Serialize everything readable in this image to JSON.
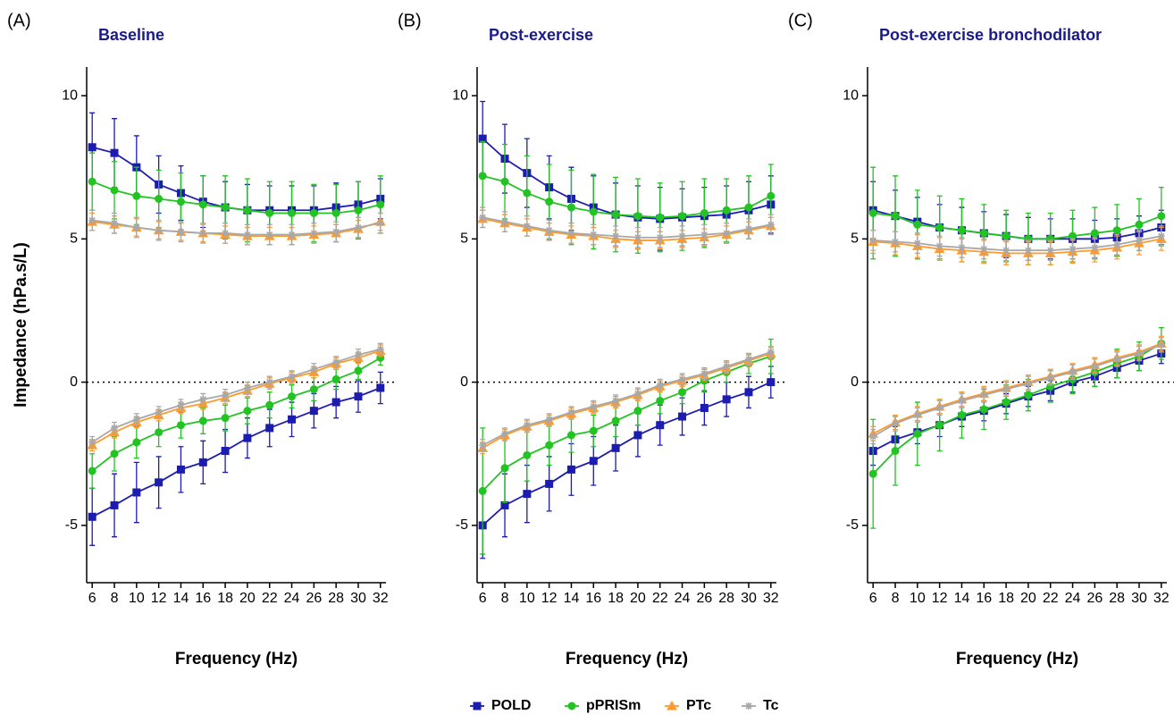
{
  "chart_data": [
    {
      "type": "line",
      "panel_label": "(A)",
      "title": "Baseline",
      "xlabel": "Frequency (Hz)",
      "ylabel": "Impedance (hPa.s/L)",
      "x": [
        6,
        8,
        10,
        12,
        14,
        16,
        18,
        20,
        22,
        24,
        26,
        28,
        30,
        32
      ],
      "xticks": [
        6,
        8,
        10,
        12,
        14,
        16,
        18,
        20,
        22,
        24,
        26,
        28,
        30,
        32
      ],
      "xlim": [
        5.5,
        32.5
      ],
      "ylim": [
        -7,
        11
      ],
      "yticks": [
        -5,
        0,
        5,
        10
      ],
      "zero_line": true,
      "series": [
        {
          "resistance": [
            8.2,
            8.0,
            7.5,
            6.9,
            6.6,
            6.3,
            6.1,
            6.0,
            6.0,
            6.0,
            6.0,
            6.1,
            6.2,
            6.4
          ],
          "resistance_sd": [
            1.2,
            1.2,
            1.1,
            1.0,
            0.95,
            0.9,
            0.9,
            0.9,
            0.85,
            0.85,
            0.85,
            0.85,
            0.8,
            0.7
          ],
          "reactance": [
            -4.7,
            -4.3,
            -3.85,
            -3.5,
            -3.05,
            -2.8,
            -2.4,
            -1.95,
            -1.6,
            -1.3,
            -1.0,
            -0.7,
            -0.5,
            -0.2
          ],
          "reactance_sd": [
            1.0,
            1.1,
            1.05,
            0.9,
            0.8,
            0.75,
            0.75,
            0.7,
            0.65,
            0.6,
            0.6,
            0.55,
            0.55,
            0.55
          ]
        },
        {
          "resistance": [
            7.0,
            6.7,
            6.5,
            6.4,
            6.3,
            6.2,
            6.1,
            6.0,
            5.9,
            5.9,
            5.9,
            5.9,
            6.0,
            6.2
          ],
          "resistance_sd": [
            1.0,
            1.0,
            1.0,
            1.0,
            1.0,
            1.0,
            1.1,
            1.1,
            1.1,
            1.1,
            1.0,
            1.0,
            1.0,
            1.0
          ],
          "reactance": [
            -3.1,
            -2.5,
            -2.1,
            -1.75,
            -1.5,
            -1.35,
            -1.25,
            -1.0,
            -0.8,
            -0.5,
            -0.25,
            0.1,
            0.4,
            0.85
          ],
          "reactance_sd": [
            0.6,
            0.6,
            0.55,
            0.5,
            0.45,
            0.45,
            0.45,
            0.45,
            0.45,
            0.4,
            0.4,
            0.35,
            0.3,
            0.25
          ]
        },
        {
          "resistance": [
            5.6,
            5.5,
            5.4,
            5.3,
            5.25,
            5.2,
            5.15,
            5.1,
            5.1,
            5.1,
            5.15,
            5.2,
            5.35,
            5.6
          ],
          "resistance_sd": [
            0.3,
            0.3,
            0.3,
            0.3,
            0.3,
            0.3,
            0.3,
            0.3,
            0.3,
            0.3,
            0.3,
            0.3,
            0.3,
            0.3
          ],
          "reactance": [
            -2.2,
            -1.75,
            -1.4,
            -1.15,
            -0.9,
            -0.75,
            -0.55,
            -0.3,
            -0.05,
            0.15,
            0.35,
            0.65,
            0.85,
            1.1
          ],
          "reactance_sd": [
            0.2,
            0.2,
            0.2,
            0.2,
            0.2,
            0.2,
            0.2,
            0.2,
            0.2,
            0.2,
            0.2,
            0.2,
            0.2,
            0.2
          ]
        },
        {
          "resistance": [
            5.65,
            5.55,
            5.4,
            5.3,
            5.25,
            5.2,
            5.2,
            5.15,
            5.15,
            5.15,
            5.2,
            5.25,
            5.4,
            5.55
          ],
          "resistance_sd": [
            0.35,
            0.35,
            0.35,
            0.35,
            0.35,
            0.35,
            0.35,
            0.35,
            0.35,
            0.35,
            0.35,
            0.35,
            0.35,
            0.35
          ],
          "reactance": [
            -2.1,
            -1.6,
            -1.3,
            -1.05,
            -0.8,
            -0.6,
            -0.45,
            -0.2,
            0.0,
            0.2,
            0.45,
            0.7,
            0.95,
            1.15
          ],
          "reactance_sd": [
            0.2,
            0.2,
            0.2,
            0.2,
            0.2,
            0.2,
            0.2,
            0.2,
            0.2,
            0.2,
            0.2,
            0.2,
            0.2,
            0.2
          ]
        }
      ]
    },
    {
      "type": "line",
      "panel_label": "(B)",
      "title": "Post-exercise",
      "xlabel": "Frequency (Hz)",
      "x": [
        6,
        8,
        10,
        12,
        14,
        16,
        18,
        20,
        22,
        24,
        26,
        28,
        30,
        32
      ],
      "xticks": [
        6,
        8,
        10,
        12,
        14,
        16,
        18,
        20,
        22,
        24,
        26,
        28,
        30,
        32
      ],
      "xlim": [
        5.5,
        32.5
      ],
      "ylim": [
        -7,
        11
      ],
      "yticks": [
        -5,
        0,
        5,
        10
      ],
      "zero_line": true,
      "series": [
        {
          "resistance": [
            8.5,
            7.8,
            7.3,
            6.8,
            6.4,
            6.1,
            5.85,
            5.75,
            5.7,
            5.75,
            5.8,
            5.85,
            6.0,
            6.2
          ],
          "resistance_sd": [
            1.3,
            1.2,
            1.2,
            1.1,
            1.1,
            1.1,
            1.1,
            1.1,
            1.1,
            1.0,
            1.0,
            1.0,
            1.0,
            1.0
          ],
          "reactance": [
            -5.0,
            -4.3,
            -3.9,
            -3.55,
            -3.05,
            -2.75,
            -2.3,
            -1.85,
            -1.5,
            -1.2,
            -0.9,
            -0.6,
            -0.35,
            0.0
          ],
          "reactance_sd": [
            1.15,
            1.1,
            1.0,
            0.95,
            0.9,
            0.85,
            0.8,
            0.75,
            0.7,
            0.65,
            0.6,
            0.6,
            0.55,
            0.55
          ]
        },
        {
          "resistance": [
            7.2,
            7.0,
            6.6,
            6.3,
            6.1,
            5.95,
            5.85,
            5.8,
            5.75,
            5.8,
            5.9,
            6.0,
            6.1,
            6.5
          ],
          "resistance_sd": [
            1.2,
            1.3,
            1.3,
            1.3,
            1.3,
            1.3,
            1.3,
            1.3,
            1.2,
            1.2,
            1.2,
            1.1,
            1.1,
            1.1
          ],
          "reactance": [
            -3.8,
            -3.0,
            -2.55,
            -2.2,
            -1.85,
            -1.7,
            -1.35,
            -1.0,
            -0.65,
            -0.35,
            0.05,
            0.35,
            0.65,
            0.9
          ],
          "reactance_sd": [
            2.2,
            1.2,
            0.9,
            0.7,
            0.6,
            0.55,
            0.55,
            0.5,
            0.45,
            0.4,
            0.4,
            0.35,
            0.35,
            0.6
          ]
        },
        {
          "resistance": [
            5.7,
            5.55,
            5.4,
            5.25,
            5.15,
            5.1,
            5.0,
            4.95,
            4.95,
            5.0,
            5.05,
            5.15,
            5.3,
            5.45
          ],
          "resistance_sd": [
            0.3,
            0.3,
            0.3,
            0.3,
            0.3,
            0.3,
            0.3,
            0.3,
            0.3,
            0.3,
            0.3,
            0.3,
            0.3,
            0.3
          ],
          "reactance": [
            -2.3,
            -1.85,
            -1.55,
            -1.35,
            -1.1,
            -0.9,
            -0.7,
            -0.45,
            -0.15,
            0.05,
            0.25,
            0.5,
            0.75,
            1.0
          ],
          "reactance_sd": [
            0.2,
            0.2,
            0.2,
            0.2,
            0.2,
            0.2,
            0.2,
            0.2,
            0.2,
            0.2,
            0.2,
            0.2,
            0.2,
            0.2
          ]
        },
        {
          "resistance": [
            5.75,
            5.6,
            5.45,
            5.3,
            5.2,
            5.15,
            5.1,
            5.05,
            5.05,
            5.1,
            5.15,
            5.2,
            5.35,
            5.5
          ],
          "resistance_sd": [
            0.35,
            0.35,
            0.35,
            0.35,
            0.35,
            0.35,
            0.35,
            0.35,
            0.35,
            0.35,
            0.35,
            0.35,
            0.35,
            0.35
          ],
          "reactance": [
            -2.2,
            -1.8,
            -1.5,
            -1.3,
            -1.05,
            -0.85,
            -0.65,
            -0.4,
            -0.1,
            0.1,
            0.3,
            0.55,
            0.8,
            1.05
          ],
          "reactance_sd": [
            0.2,
            0.2,
            0.2,
            0.2,
            0.2,
            0.2,
            0.2,
            0.2,
            0.2,
            0.2,
            0.2,
            0.2,
            0.2,
            0.2
          ]
        }
      ]
    },
    {
      "type": "line",
      "panel_label": "(C)",
      "title": "Post-exercise bronchodilator",
      "xlabel": "Frequency (Hz)",
      "x": [
        6,
        8,
        10,
        12,
        14,
        16,
        18,
        20,
        22,
        24,
        26,
        28,
        30,
        32
      ],
      "xticks": [
        6,
        8,
        10,
        12,
        14,
        16,
        18,
        20,
        22,
        24,
        26,
        28,
        30,
        32
      ],
      "xlim": [
        5.5,
        32.5
      ],
      "ylim": [
        -7,
        11
      ],
      "yticks": [
        -5,
        0,
        5,
        10
      ],
      "zero_line": true,
      "series": [
        {
          "resistance": [
            6.0,
            5.8,
            5.6,
            5.4,
            5.3,
            5.2,
            5.1,
            5.0,
            5.0,
            5.0,
            5.0,
            5.05,
            5.2,
            5.4
          ],
          "resistance_sd": [
            1.0,
            0.9,
            0.85,
            0.8,
            0.8,
            0.75,
            0.75,
            0.75,
            0.7,
            0.7,
            0.65,
            0.65,
            0.6,
            0.6
          ],
          "reactance": [
            -2.4,
            -2.0,
            -1.75,
            -1.5,
            -1.2,
            -1.0,
            -0.75,
            -0.5,
            -0.3,
            0.0,
            0.2,
            0.5,
            0.75,
            1.0
          ],
          "reactance_sd": [
            0.5,
            0.45,
            0.4,
            0.4,
            0.35,
            0.35,
            0.35,
            0.35,
            0.35,
            0.35,
            0.35,
            0.35,
            0.35,
            0.35
          ]
        },
        {
          "resistance": [
            5.9,
            5.8,
            5.5,
            5.4,
            5.3,
            5.2,
            5.1,
            5.0,
            5.0,
            5.1,
            5.2,
            5.3,
            5.5,
            5.8
          ],
          "resistance_sd": [
            1.6,
            1.4,
            1.2,
            1.1,
            1.1,
            1.0,
            0.9,
            0.9,
            0.9,
            0.9,
            0.9,
            0.9,
            0.9,
            1.0
          ],
          "reactance": [
            -3.2,
            -2.4,
            -1.8,
            -1.5,
            -1.15,
            -0.95,
            -0.7,
            -0.45,
            -0.15,
            0.1,
            0.35,
            0.65,
            0.9,
            1.35
          ],
          "reactance_sd": [
            1.9,
            1.2,
            1.1,
            0.9,
            0.8,
            0.7,
            0.6,
            0.55,
            0.55,
            0.5,
            0.5,
            0.5,
            0.5,
            0.55
          ]
        },
        {
          "resistance": [
            4.9,
            4.85,
            4.75,
            4.65,
            4.6,
            4.55,
            4.5,
            4.5,
            4.5,
            4.55,
            4.6,
            4.7,
            4.85,
            5.0
          ],
          "resistance_sd": [
            0.4,
            0.4,
            0.4,
            0.4,
            0.4,
            0.4,
            0.4,
            0.4,
            0.4,
            0.4,
            0.4,
            0.4,
            0.4,
            0.4
          ],
          "reactance": [
            -1.8,
            -1.4,
            -1.1,
            -0.85,
            -0.6,
            -0.4,
            -0.2,
            0.0,
            0.2,
            0.4,
            0.6,
            0.85,
            1.05,
            1.35
          ],
          "reactance_sd": [
            0.25,
            0.25,
            0.25,
            0.25,
            0.25,
            0.25,
            0.25,
            0.25,
            0.25,
            0.25,
            0.25,
            0.25,
            0.25,
            0.25
          ]
        },
        {
          "resistance": [
            4.95,
            4.9,
            4.85,
            4.75,
            4.7,
            4.65,
            4.6,
            4.6,
            4.6,
            4.65,
            4.7,
            4.8,
            4.95,
            5.1
          ],
          "resistance_sd": [
            0.35,
            0.35,
            0.35,
            0.35,
            0.35,
            0.35,
            0.35,
            0.35,
            0.35,
            0.35,
            0.35,
            0.35,
            0.35,
            0.35
          ],
          "reactance": [
            -1.9,
            -1.45,
            -1.15,
            -0.9,
            -0.65,
            -0.45,
            -0.25,
            -0.05,
            0.15,
            0.35,
            0.55,
            0.8,
            1.0,
            1.3
          ],
          "reactance_sd": [
            0.25,
            0.25,
            0.25,
            0.25,
            0.25,
            0.25,
            0.25,
            0.25,
            0.25,
            0.25,
            0.25,
            0.25,
            0.25,
            0.25
          ]
        }
      ]
    }
  ],
  "legend": [
    {
      "name": "POLD",
      "color": "#1c1cb0",
      "marker": "square"
    },
    {
      "name": "pPRISm",
      "color": "#22c322",
      "marker": "circle"
    },
    {
      "name": "PTc",
      "color": "#ff9a2e",
      "marker": "triangle"
    },
    {
      "name": "Tc",
      "color": "#a8a8a8",
      "marker": "star"
    }
  ]
}
